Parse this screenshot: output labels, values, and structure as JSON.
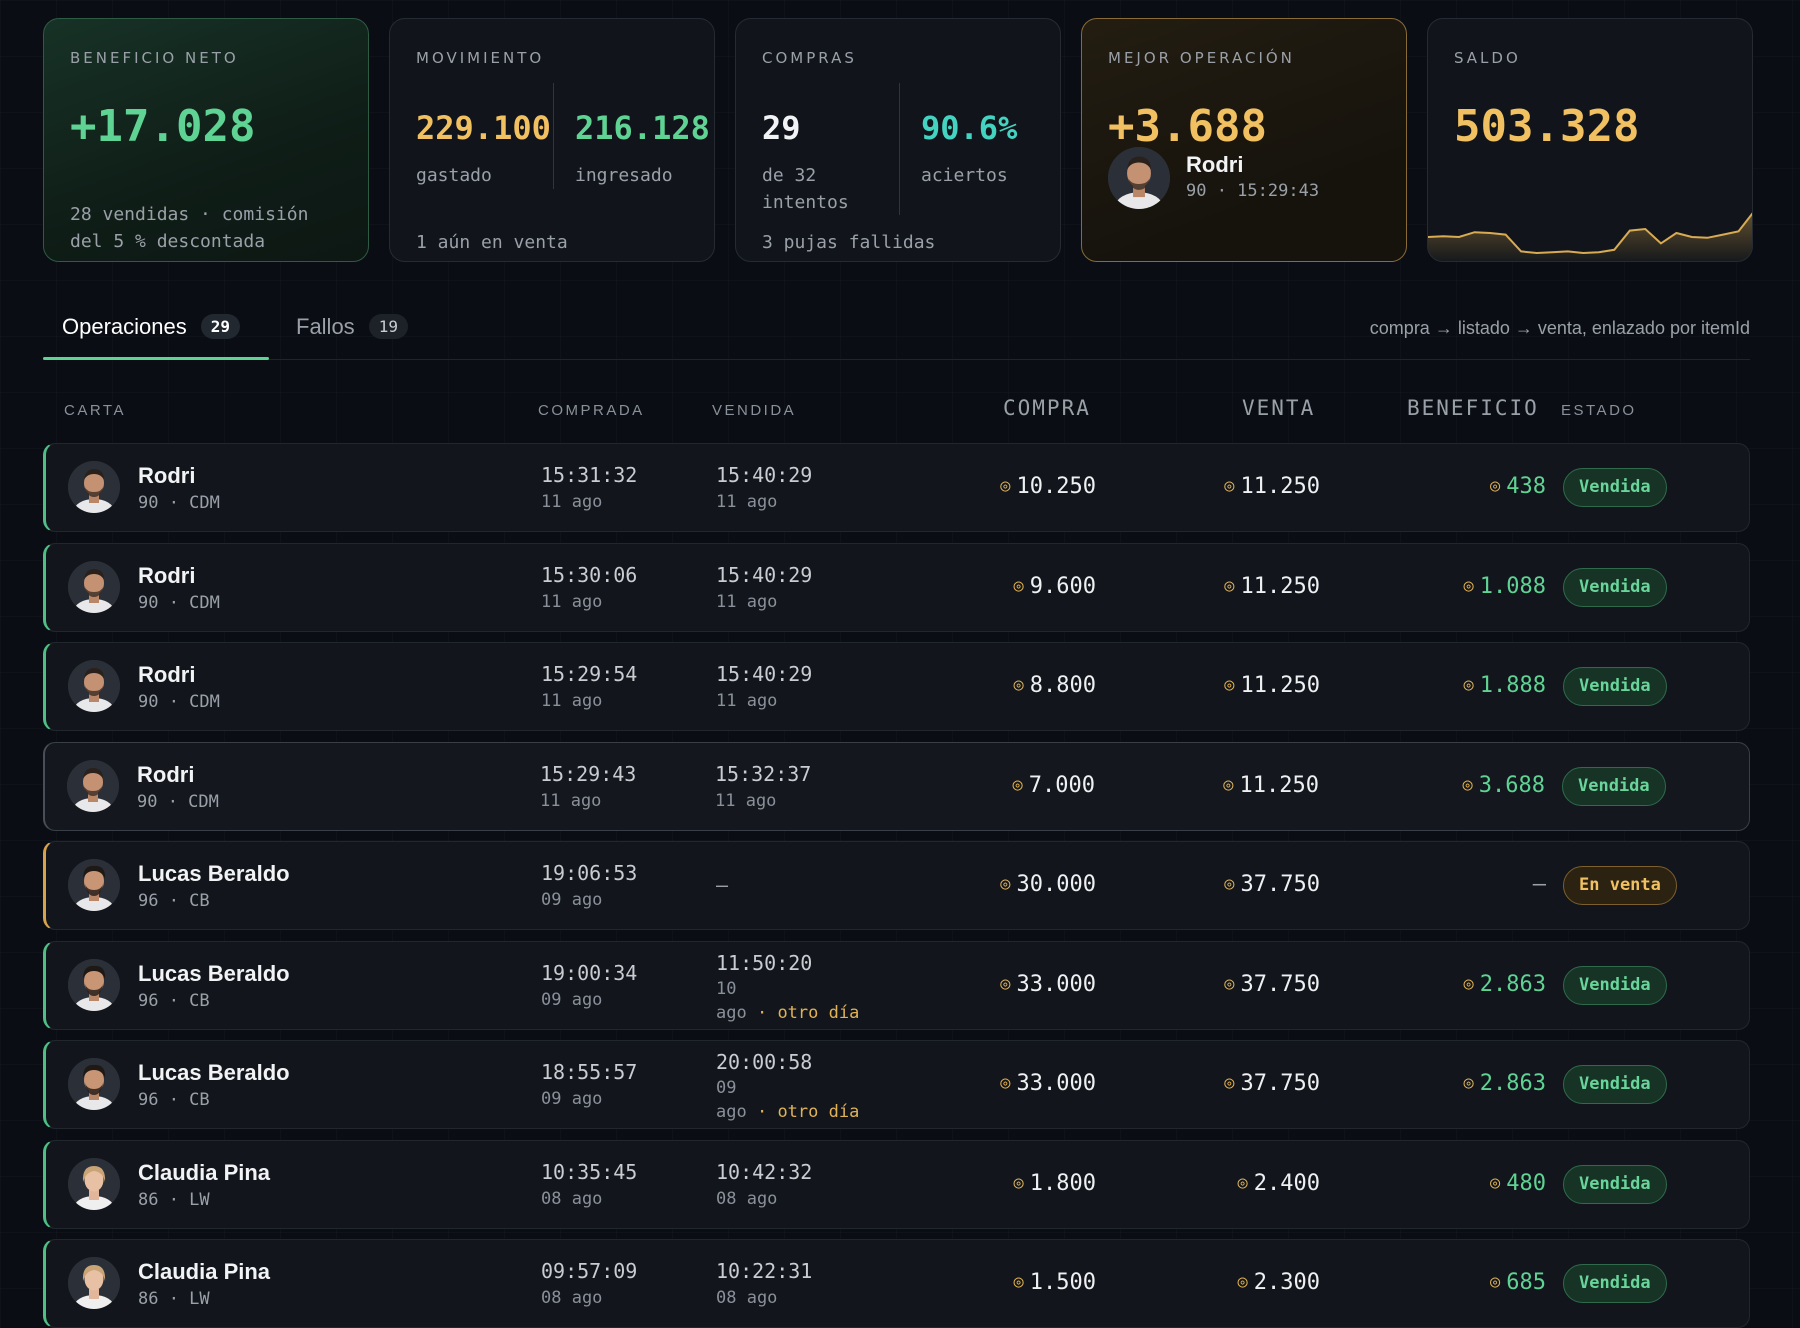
{
  "cards": {
    "net_profit": {
      "label": "BENEFICIO NETO",
      "value": "+17.028",
      "note": "28 vendidas · comisión del 5 % descontada"
    },
    "movement": {
      "label": "MOVIMIENTO",
      "spent_value": "229.100",
      "spent_label": "gastado",
      "income_value": "216.128",
      "income_label": "ingresado",
      "note": "1 aún en venta"
    },
    "purchases": {
      "label": "COMPRAS",
      "count": "29",
      "count_label": "de 32 intentos",
      "rate": "90.6%",
      "rate_label": "aciertos",
      "note": "3 pujas fallidas"
    },
    "best": {
      "label": "MEJOR OPERACIÓN",
      "value": "+3.688",
      "player": "Rodri",
      "meta": "90 · 15:29:43"
    },
    "balance": {
      "label": "SALDO",
      "value": "503.328",
      "sparkline": [
        0.3,
        0.31,
        0.3,
        0.36,
        0.35,
        0.33,
        0.12,
        0.1,
        0.11,
        0.12,
        0.1,
        0.11,
        0.14,
        0.38,
        0.4,
        0.22,
        0.35,
        0.3,
        0.29,
        0.33,
        0.37,
        0.62
      ]
    }
  },
  "tabs": [
    {
      "label": "Operaciones",
      "count": "29",
      "active": true
    },
    {
      "label": "Fallos",
      "count": "19",
      "active": false
    }
  ],
  "tabs_note": "compra → listado → venta, enlazado por itemId",
  "columns": {
    "card": "CARTA",
    "bought": "COMPRADA",
    "sold": "VENDIDA",
    "buy": "COMPRA",
    "sell": "VENTA",
    "profit": "BENEFICIO",
    "status": "ESTADO"
  },
  "coin_icon": "coin-icon",
  "rows": [
    {
      "name": "Rodri",
      "meta": "90 · CDM",
      "bought_time": "15:31:32",
      "bought_date": "11 ago",
      "sold_time": "15:40:29",
      "sold_date": "11 ago",
      "buy": "10.250",
      "sell": "11.250",
      "profit": "438",
      "status": "Vendida"
    },
    {
      "name": "Rodri",
      "meta": "90 · CDM",
      "bought_time": "15:30:06",
      "bought_date": "11 ago",
      "sold_time": "15:40:29",
      "sold_date": "11 ago",
      "buy": "9.600",
      "sell": "11.250",
      "profit": "1.088",
      "status": "Vendida"
    },
    {
      "name": "Rodri",
      "meta": "90 · CDM",
      "bought_time": "15:29:54",
      "bought_date": "11 ago",
      "sold_time": "15:40:29",
      "sold_date": "11 ago",
      "buy": "8.800",
      "sell": "11.250",
      "profit": "1.888",
      "status": "Vendida"
    },
    {
      "name": "Rodri",
      "meta": "90 · CDM",
      "bought_time": "15:29:43",
      "bought_date": "11 ago",
      "sold_time": "15:32:37",
      "sold_date": "11 ago",
      "buy": "7.000",
      "sell": "11.250",
      "profit": "3.688",
      "status": "Vendida"
    },
    {
      "name": "Lucas Beraldo",
      "meta": "96 · CB",
      "bought_time": "19:06:53",
      "bought_date": "09 ago",
      "sold_time": "–",
      "sold_date": "",
      "buy": "30.000",
      "sell": "37.750",
      "profit": "—",
      "status": "En venta"
    },
    {
      "name": "Lucas Beraldo",
      "meta": "96 · CB",
      "bought_time": "19:00:34",
      "bought_date": "09 ago",
      "sold_time": "11:50:20",
      "sold_day": "10",
      "sold_month": "ago",
      "sold_other": "· otro día",
      "buy": "33.000",
      "sell": "37.750",
      "profit": "2.863",
      "status": "Vendida"
    },
    {
      "name": "Lucas Beraldo",
      "meta": "96 · CB",
      "bought_time": "18:55:57",
      "bought_date": "09 ago",
      "sold_time": "20:00:58",
      "sold_day": "09",
      "sold_month": "ago",
      "sold_other": "· otro día",
      "buy": "33.000",
      "sell": "37.750",
      "profit": "2.863",
      "status": "Vendida"
    },
    {
      "name": "Claudia Pina",
      "meta": "86 · LW",
      "bought_time": "10:35:45",
      "bought_date": "08 ago",
      "sold_time": "10:42:32",
      "sold_date": "08 ago",
      "buy": "1.800",
      "sell": "2.400",
      "profit": "480",
      "status": "Vendida"
    },
    {
      "name": "Claudia Pina",
      "meta": "86 · LW",
      "bought_time": "09:57:09",
      "bought_date": "08 ago",
      "sold_time": "10:22:31",
      "sold_date": "08 ago",
      "buy": "1.500",
      "sell": "2.300",
      "profit": "685",
      "status": "Vendida"
    }
  ]
}
